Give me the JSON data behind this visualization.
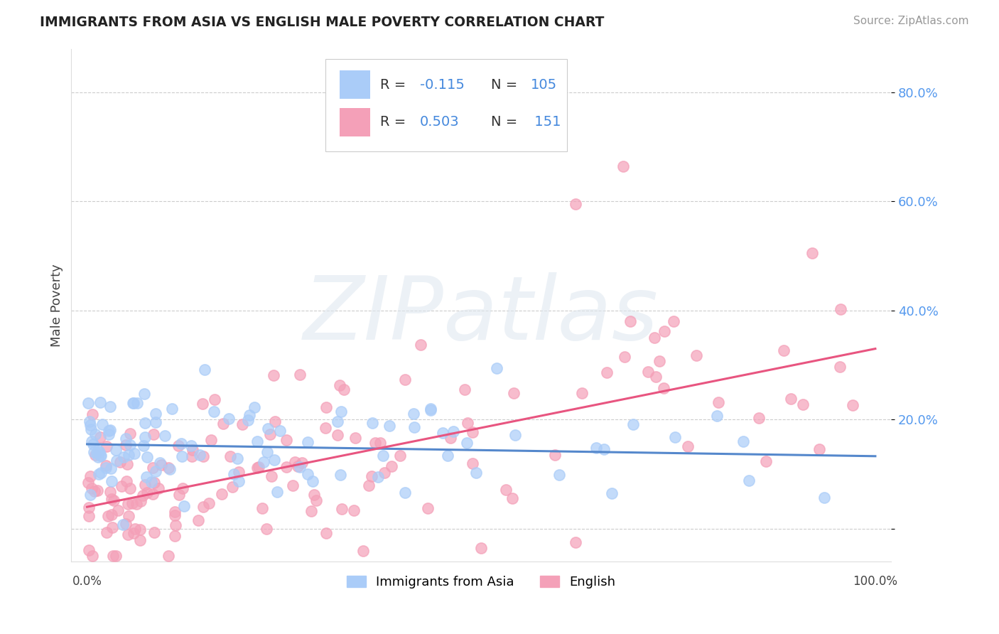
{
  "title": "IMMIGRANTS FROM ASIA VS ENGLISH MALE POVERTY CORRELATION CHART",
  "source": "Source: ZipAtlas.com",
  "ylabel": "Male Poverty",
  "y_ticks": [
    0.0,
    0.2,
    0.4,
    0.6,
    0.8
  ],
  "y_tick_labels": [
    "",
    "20.0%",
    "40.0%",
    "60.0%",
    "80.0%"
  ],
  "xlim": [
    -0.02,
    1.02
  ],
  "ylim": [
    -0.06,
    0.88
  ],
  "legend_label1": "Immigrants from Asia",
  "legend_label2": "English",
  "r1": "-0.115",
  "n1": "105",
  "r2": "0.503",
  "n2": "151",
  "color_asia": "#aaccf8",
  "color_english": "#f4a0b8",
  "color_asia_line": "#5588cc",
  "color_english_line": "#e85580",
  "background_color": "#ffffff",
  "grid_color": "#cccccc",
  "asia_intercept": 0.155,
  "asia_slope": -0.022,
  "english_intercept": 0.04,
  "english_slope": 0.29
}
